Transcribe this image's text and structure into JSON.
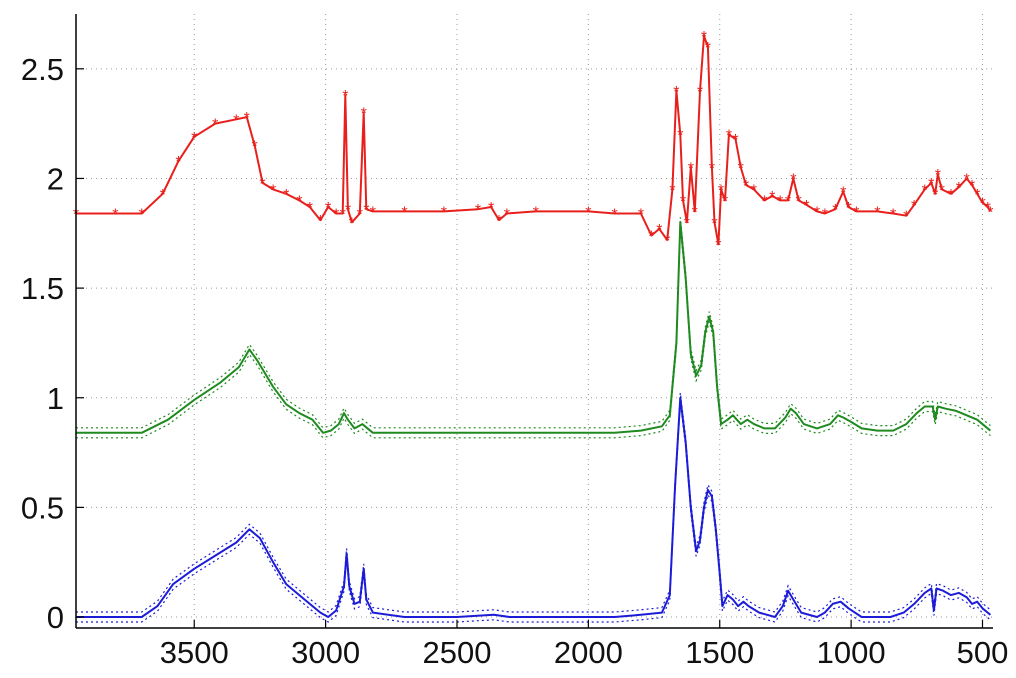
{
  "chart_data": {
    "type": "line",
    "xlim": [
      3950,
      460
    ],
    "ylim": [
      -0.05,
      2.75
    ],
    "x_reversed": true,
    "grid": true,
    "legend": "none",
    "xticks": [
      3500,
      3000,
      2500,
      2000,
      1500,
      1000,
      500
    ],
    "yticks": [
      0,
      0.5,
      1,
      1.5,
      2,
      2.5
    ],
    "xtick_labels": [
      "3500",
      "3000",
      "2500",
      "2000",
      "1500",
      "1000",
      "500"
    ],
    "ytick_labels": [
      "0",
      "0.5",
      "1",
      "1.5",
      "2",
      "2.5"
    ],
    "series": [
      {
        "color": "#e8201c",
        "marker": "asterisk",
        "points": [
          [
            3950,
            1.84
          ],
          [
            3800,
            1.84
          ],
          [
            3700,
            1.84
          ],
          [
            3620,
            1.93
          ],
          [
            3560,
            2.08
          ],
          [
            3500,
            2.19
          ],
          [
            3420,
            2.25
          ],
          [
            3340,
            2.27
          ],
          [
            3300,
            2.28
          ],
          [
            3270,
            2.15
          ],
          [
            3240,
            1.98
          ],
          [
            3200,
            1.95
          ],
          [
            3150,
            1.93
          ],
          [
            3100,
            1.9
          ],
          [
            3060,
            1.87
          ],
          [
            3020,
            1.81
          ],
          [
            2990,
            1.87
          ],
          [
            2960,
            1.84
          ],
          [
            2935,
            1.84
          ],
          [
            2925,
            2.38
          ],
          [
            2915,
            1.86
          ],
          [
            2900,
            1.8
          ],
          [
            2870,
            1.84
          ],
          [
            2855,
            2.3
          ],
          [
            2845,
            1.86
          ],
          [
            2820,
            1.85
          ],
          [
            2700,
            1.85
          ],
          [
            2550,
            1.85
          ],
          [
            2420,
            1.86
          ],
          [
            2370,
            1.87
          ],
          [
            2340,
            1.81
          ],
          [
            2310,
            1.84
          ],
          [
            2200,
            1.85
          ],
          [
            2000,
            1.85
          ],
          [
            1900,
            1.84
          ],
          [
            1800,
            1.84
          ],
          [
            1760,
            1.74
          ],
          [
            1730,
            1.77
          ],
          [
            1700,
            1.72
          ],
          [
            1680,
            1.95
          ],
          [
            1665,
            2.4
          ],
          [
            1650,
            2.2
          ],
          [
            1640,
            1.9
          ],
          [
            1625,
            1.8
          ],
          [
            1610,
            2.05
          ],
          [
            1595,
            1.85
          ],
          [
            1575,
            2.4
          ],
          [
            1560,
            2.65
          ],
          [
            1545,
            2.6
          ],
          [
            1530,
            2.05
          ],
          [
            1520,
            1.8
          ],
          [
            1505,
            1.7
          ],
          [
            1495,
            1.95
          ],
          [
            1480,
            1.9
          ],
          [
            1465,
            2.2
          ],
          [
            1440,
            2.18
          ],
          [
            1420,
            2.05
          ],
          [
            1400,
            1.97
          ],
          [
            1370,
            1.95
          ],
          [
            1330,
            1.9
          ],
          [
            1300,
            1.92
          ],
          [
            1270,
            1.9
          ],
          [
            1240,
            1.9
          ],
          [
            1220,
            2.0
          ],
          [
            1200,
            1.9
          ],
          [
            1170,
            1.88
          ],
          [
            1130,
            1.85
          ],
          [
            1100,
            1.84
          ],
          [
            1060,
            1.86
          ],
          [
            1030,
            1.94
          ],
          [
            1010,
            1.87
          ],
          [
            980,
            1.85
          ],
          [
            900,
            1.85
          ],
          [
            840,
            1.84
          ],
          [
            790,
            1.83
          ],
          [
            760,
            1.88
          ],
          [
            720,
            1.95
          ],
          [
            695,
            1.98
          ],
          [
            680,
            1.93
          ],
          [
            670,
            2.02
          ],
          [
            655,
            1.95
          ],
          [
            620,
            1.93
          ],
          [
            590,
            1.96
          ],
          [
            560,
            2.0
          ],
          [
            540,
            1.97
          ],
          [
            520,
            1.93
          ],
          [
            500,
            1.89
          ],
          [
            480,
            1.87
          ],
          [
            470,
            1.85
          ]
        ]
      },
      {
        "color": "#1f8a1f",
        "marker": "dotted-band",
        "points": [
          [
            3950,
            0.84
          ],
          [
            3800,
            0.84
          ],
          [
            3700,
            0.84
          ],
          [
            3600,
            0.9
          ],
          [
            3500,
            0.99
          ],
          [
            3400,
            1.07
          ],
          [
            3330,
            1.14
          ],
          [
            3290,
            1.22
          ],
          [
            3260,
            1.17
          ],
          [
            3200,
            1.05
          ],
          [
            3150,
            0.97
          ],
          [
            3100,
            0.93
          ],
          [
            3050,
            0.9
          ],
          [
            3010,
            0.84
          ],
          [
            2980,
            0.85
          ],
          [
            2950,
            0.88
          ],
          [
            2930,
            0.93
          ],
          [
            2915,
            0.9
          ],
          [
            2890,
            0.86
          ],
          [
            2860,
            0.88
          ],
          [
            2850,
            0.87
          ],
          [
            2820,
            0.84
          ],
          [
            2700,
            0.84
          ],
          [
            2500,
            0.84
          ],
          [
            2380,
            0.84
          ],
          [
            2350,
            0.84
          ],
          [
            2300,
            0.84
          ],
          [
            2100,
            0.84
          ],
          [
            1900,
            0.84
          ],
          [
            1800,
            0.85
          ],
          [
            1720,
            0.87
          ],
          [
            1690,
            0.92
          ],
          [
            1665,
            1.25
          ],
          [
            1650,
            1.8
          ],
          [
            1630,
            1.55
          ],
          [
            1610,
            1.2
          ],
          [
            1590,
            1.1
          ],
          [
            1570,
            1.15
          ],
          [
            1555,
            1.3
          ],
          [
            1540,
            1.37
          ],
          [
            1525,
            1.3
          ],
          [
            1510,
            1.05
          ],
          [
            1495,
            0.88
          ],
          [
            1470,
            0.9
          ],
          [
            1450,
            0.92
          ],
          [
            1420,
            0.88
          ],
          [
            1395,
            0.9
          ],
          [
            1370,
            0.88
          ],
          [
            1330,
            0.86
          ],
          [
            1290,
            0.86
          ],
          [
            1250,
            0.91
          ],
          [
            1230,
            0.95
          ],
          [
            1210,
            0.93
          ],
          [
            1180,
            0.88
          ],
          [
            1130,
            0.86
          ],
          [
            1080,
            0.88
          ],
          [
            1050,
            0.92
          ],
          [
            1030,
            0.91
          ],
          [
            1000,
            0.89
          ],
          [
            960,
            0.86
          ],
          [
            900,
            0.85
          ],
          [
            840,
            0.85
          ],
          [
            790,
            0.88
          ],
          [
            750,
            0.93
          ],
          [
            720,
            0.96
          ],
          [
            690,
            0.96
          ],
          [
            680,
            0.9
          ],
          [
            670,
            0.96
          ],
          [
            640,
            0.95
          ],
          [
            600,
            0.94
          ],
          [
            560,
            0.92
          ],
          [
            520,
            0.9
          ],
          [
            490,
            0.87
          ],
          [
            470,
            0.85
          ]
        ]
      },
      {
        "color": "#1c1cd8",
        "marker": "dotted-band",
        "points": [
          [
            3950,
            0.0
          ],
          [
            3800,
            0.0
          ],
          [
            3700,
            0.0
          ],
          [
            3640,
            0.05
          ],
          [
            3580,
            0.15
          ],
          [
            3500,
            0.22
          ],
          [
            3420,
            0.28
          ],
          [
            3340,
            0.34
          ],
          [
            3290,
            0.4
          ],
          [
            3250,
            0.36
          ],
          [
            3200,
            0.25
          ],
          [
            3150,
            0.15
          ],
          [
            3100,
            0.1
          ],
          [
            3050,
            0.05
          ],
          [
            3020,
            0.02
          ],
          [
            2990,
            0.0
          ],
          [
            2960,
            0.03
          ],
          [
            2930,
            0.14
          ],
          [
            2920,
            0.29
          ],
          [
            2910,
            0.14
          ],
          [
            2890,
            0.06
          ],
          [
            2870,
            0.07
          ],
          [
            2855,
            0.22
          ],
          [
            2845,
            0.08
          ],
          [
            2820,
            0.02
          ],
          [
            2700,
            0.0
          ],
          [
            2500,
            0.0
          ],
          [
            2360,
            0.01
          ],
          [
            2300,
            0.0
          ],
          [
            2100,
            0.0
          ],
          [
            1900,
            0.0
          ],
          [
            1800,
            0.01
          ],
          [
            1720,
            0.02
          ],
          [
            1690,
            0.1
          ],
          [
            1670,
            0.6
          ],
          [
            1650,
            1.0
          ],
          [
            1630,
            0.8
          ],
          [
            1610,
            0.5
          ],
          [
            1590,
            0.3
          ],
          [
            1575,
            0.35
          ],
          [
            1560,
            0.5
          ],
          [
            1545,
            0.58
          ],
          [
            1530,
            0.55
          ],
          [
            1515,
            0.4
          ],
          [
            1500,
            0.2
          ],
          [
            1490,
            0.05
          ],
          [
            1470,
            0.1
          ],
          [
            1450,
            0.08
          ],
          [
            1430,
            0.05
          ],
          [
            1410,
            0.07
          ],
          [
            1390,
            0.05
          ],
          [
            1350,
            0.02
          ],
          [
            1290,
            0.0
          ],
          [
            1260,
            0.05
          ],
          [
            1240,
            0.12
          ],
          [
            1220,
            0.08
          ],
          [
            1190,
            0.02
          ],
          [
            1130,
            0.0
          ],
          [
            1100,
            0.02
          ],
          [
            1070,
            0.06
          ],
          [
            1040,
            0.07
          ],
          [
            1010,
            0.04
          ],
          [
            960,
            0.0
          ],
          [
            900,
            0.0
          ],
          [
            850,
            0.0
          ],
          [
            800,
            0.02
          ],
          [
            760,
            0.06
          ],
          [
            720,
            0.11
          ],
          [
            695,
            0.13
          ],
          [
            685,
            0.03
          ],
          [
            675,
            0.13
          ],
          [
            650,
            0.12
          ],
          [
            620,
            0.1
          ],
          [
            590,
            0.11
          ],
          [
            560,
            0.09
          ],
          [
            540,
            0.06
          ],
          [
            520,
            0.07
          ],
          [
            500,
            0.04
          ],
          [
            480,
            0.02
          ],
          [
            470,
            0.01
          ]
        ]
      }
    ]
  }
}
